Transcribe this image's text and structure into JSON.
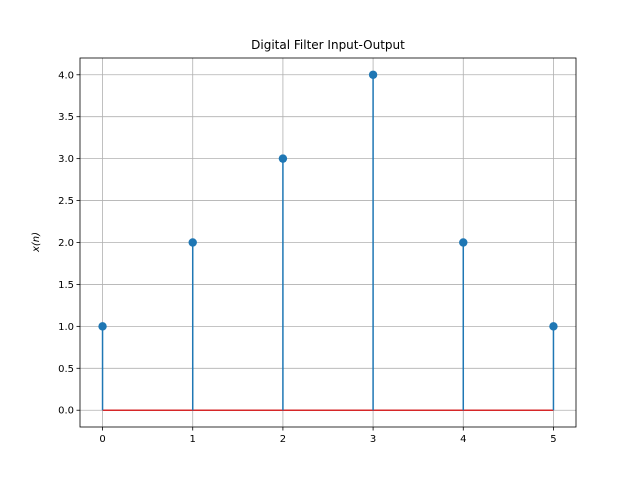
{
  "chart_data": {
    "type": "stem",
    "title": "Digital Filter Input-Output",
    "xlabel": "",
    "ylabel": "x(n)",
    "x": [
      0,
      1,
      2,
      3,
      4,
      5
    ],
    "values": [
      1.0,
      2.0,
      3.0,
      4.0,
      2.0,
      1.0
    ],
    "xlim": [
      -0.25,
      5.25
    ],
    "ylim": [
      -0.2,
      4.2
    ],
    "xticks": [
      "0",
      "1",
      "2",
      "3",
      "4",
      "5"
    ],
    "yticks": [
      "0.0",
      "0.5",
      "1.0",
      "1.5",
      "2.0",
      "2.5",
      "3.0",
      "3.5",
      "4.0"
    ],
    "grid": true,
    "stem_color": "#1f77b4",
    "baseline_color": "#d62728",
    "baseline_value": 0
  }
}
